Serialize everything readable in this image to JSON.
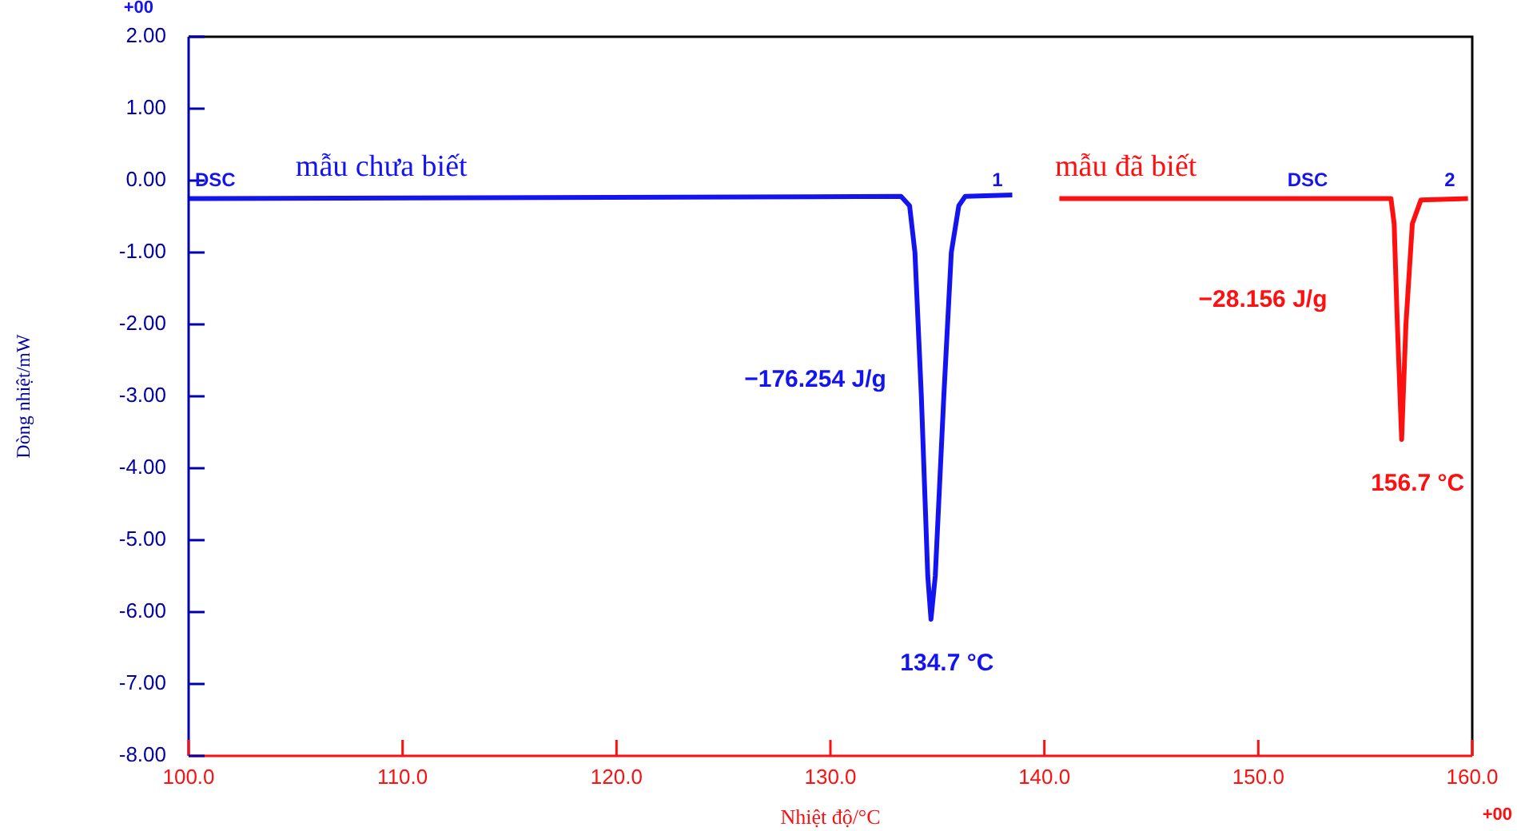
{
  "chart_data": {
    "type": "line",
    "xlabel": "Nhiệt độ/°C",
    "ylabel": "Dòng nhiệt/mW",
    "series": [
      {
        "name": "mẫu chưa biết",
        "color": "#1414f0",
        "x": [
          100,
          133.3,
          133.7,
          133.95,
          134.25,
          134.55,
          134.7,
          134.9,
          135.3,
          135.65,
          136.0,
          136.3,
          138.5
        ],
        "values": [
          -0.25,
          -0.22,
          -0.35,
          -1.0,
          -3.0,
          -5.5,
          -6.1,
          -5.5,
          -3.0,
          -1.0,
          -0.35,
          -0.22,
          -0.2
        ]
      },
      {
        "name": "mẫu đã biết",
        "color": "#ff1010",
        "x": [
          140.7,
          156.2,
          156.35,
          156.5,
          156.7,
          156.9,
          157.2,
          157.6,
          159.8
        ],
        "values": [
          -0.25,
          -0.25,
          -0.6,
          -2.0,
          -3.6,
          -2.0,
          -0.6,
          -0.27,
          -0.25
        ]
      }
    ],
    "xlim": [
      100,
      160
    ],
    "ylim": [
      -8,
      2
    ],
    "xticks": [
      {
        "value": 100,
        "label": "100.0"
      },
      {
        "value": 110,
        "label": "110.0"
      },
      {
        "value": 120,
        "label": "120.0"
      },
      {
        "value": 130,
        "label": "130.0"
      },
      {
        "value": 140,
        "label": "140.0"
      },
      {
        "value": 150,
        "label": "150.0"
      },
      {
        "value": 160,
        "label": "160.0"
      }
    ],
    "yticks": [
      {
        "value": 2,
        "label": "2.00"
      },
      {
        "value": 1,
        "label": "1.00"
      },
      {
        "value": 0,
        "label": "0.00"
      },
      {
        "value": -1,
        "label": "-1.00"
      },
      {
        "value": -2,
        "label": "-2.00"
      },
      {
        "value": -3,
        "label": "-3.00"
      },
      {
        "value": -4,
        "label": "-4.00"
      },
      {
        "value": -5,
        "label": "-5.00"
      },
      {
        "value": -6,
        "label": "-6.00"
      },
      {
        "value": -7,
        "label": "-7.00"
      },
      {
        "value": -8,
        "label": "-8.00"
      }
    ],
    "grid": false,
    "legend": false,
    "marker": "none",
    "line_style": "solid",
    "annotations": [
      "+00",
      "+00",
      "DSC",
      "1",
      "DSC",
      "2",
      "−176.254 J/g",
      "−28.156 J/g",
      {
        "text": "134.7 °C",
        "x": 134.7,
        "y": -6.1
      },
      {
        "text": "156.7 °C",
        "x": 156.7,
        "y": -3.6
      }
    ]
  }
}
